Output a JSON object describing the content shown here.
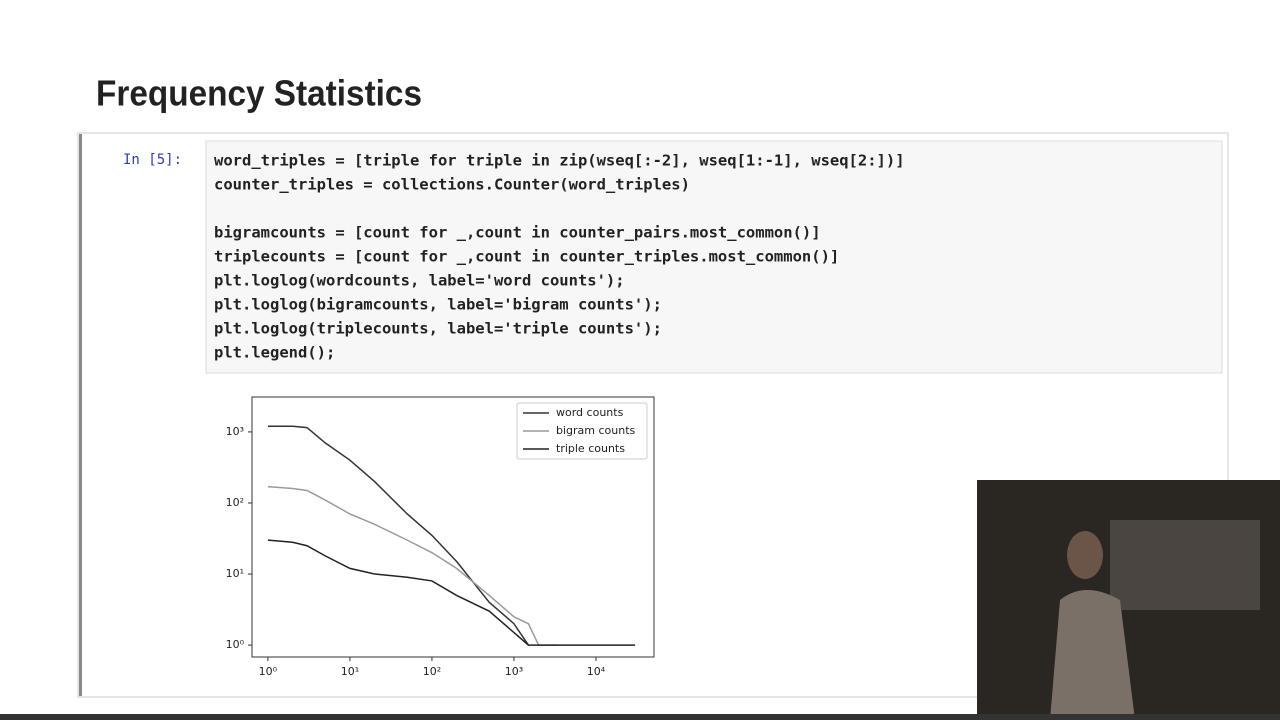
{
  "slide": {
    "title": "Frequency Statistics"
  },
  "cell": {
    "prompt": "In [5]:",
    "code": [
      "word_triples = [triple for triple in zip(wseq[:-2], wseq[1:-1], wseq[2:])]",
      "counter_triples = collections.Counter(word_triples)",
      "bigramcounts = [count for _,count in counter_pairs.most_common()]",
      "triplecounts = [count for _,count in counter_triples.most_common()]",
      "plt.loglog(wordcounts, label='word counts');",
      "plt.loglog(bigramcounts, label='bigram counts');",
      "plt.loglog(triplecounts, label='triple counts');",
      "plt.legend();"
    ]
  },
  "chart_data": {
    "type": "line",
    "log_x": true,
    "log_y": true,
    "x": [
      1,
      2,
      3,
      5,
      10,
      20,
      50,
      100,
      200,
      500,
      1000,
      1500,
      2000,
      3500,
      30000
    ],
    "series": [
      {
        "name": "word counts",
        "color": "#333333",
        "values": [
          1200,
          1200,
          1150,
          700,
          400,
          200,
          70,
          35,
          15,
          4,
          2,
          1,
          null,
          null,
          null
        ]
      },
      {
        "name": "bigram counts",
        "color": "#9a9a9a",
        "values": [
          170,
          160,
          150,
          110,
          70,
          50,
          30,
          20,
          12,
          5,
          2.5,
          2,
          1,
          1,
          null
        ]
      },
      {
        "name": "triple counts",
        "color": "#222222",
        "values": [
          30,
          28,
          25,
          18,
          12,
          10,
          9,
          8,
          5,
          3,
          1.5,
          1,
          1,
          1,
          1
        ]
      }
    ],
    "xlim": [
      0.64,
      51000
    ],
    "ylim": [
      0.68,
      3100
    ],
    "xticks": [
      {
        "value": 1,
        "label": "10⁰"
      },
      {
        "value": 10,
        "label": "10¹"
      },
      {
        "value": 100,
        "label": "10²"
      },
      {
        "value": 1000,
        "label": "10³"
      },
      {
        "value": 10000,
        "label": "10⁴"
      }
    ],
    "yticks": [
      {
        "value": 1,
        "label": "10⁰"
      },
      {
        "value": 10,
        "label": "10¹"
      },
      {
        "value": 100,
        "label": "10²"
      },
      {
        "value": 1000,
        "label": "10³"
      }
    ],
    "legend": "upper right"
  }
}
